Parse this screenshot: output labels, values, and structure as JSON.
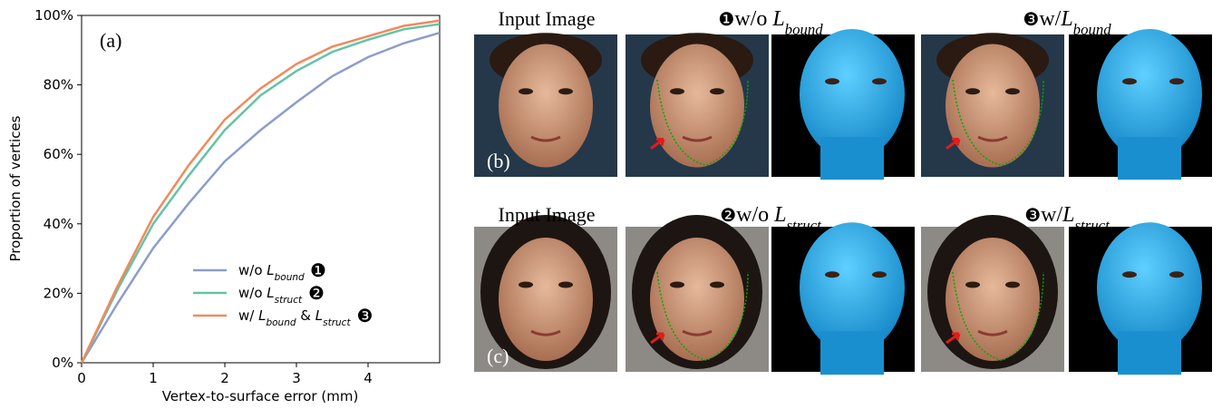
{
  "chart_data": {
    "type": "line",
    "annotation": "(a)",
    "x_label": "Vertex-to-surface error (mm)",
    "y_label": "Proportion of vertices",
    "x": [
      0,
      0.5,
      1,
      1.5,
      2,
      2.5,
      3,
      3.5,
      4,
      4.5,
      5
    ],
    "xlim": [
      0,
      5
    ],
    "xticks": [
      0,
      1,
      2,
      3,
      4
    ],
    "ylim": [
      0,
      100
    ],
    "yticks": [
      {
        "value": 0,
        "label": "0%"
      },
      {
        "value": 20,
        "label": "20%"
      },
      {
        "value": 40,
        "label": "40%"
      },
      {
        "value": 60,
        "label": "60%"
      },
      {
        "value": 80,
        "label": "80%"
      },
      {
        "value": 100,
        "label": "100%"
      }
    ],
    "legend": "lower right",
    "series": [
      {
        "name": [
          "w/o ",
          "L",
          "bound"
        ],
        "marker": "❶",
        "color": "#8c9dcb",
        "values": [
          0,
          17,
          33,
          46,
          58,
          67,
          75,
          82.5,
          88,
          92,
          95
        ]
      },
      {
        "name": [
          "w/o ",
          "L",
          "struct"
        ],
        "marker": "❷",
        "color": "#66c2a5",
        "values": [
          0,
          21,
          40,
          54,
          67,
          77,
          84,
          89.5,
          93,
          96,
          97.5
        ]
      },
      {
        "name": [
          "w/ ",
          "L",
          "bound",
          " & ",
          "L",
          "struct"
        ],
        "marker": "❸",
        "color": "#f08a5d",
        "values": [
          0,
          22,
          42,
          57,
          70,
          79,
          86,
          91,
          94,
          97,
          98.5
        ]
      }
    ]
  },
  "figure": {
    "rows": [
      {
        "label": "(b)",
        "input_title": "Input Image",
        "headers": [
          {
            "marker": "❶",
            "text": [
              "w/o ",
              "L",
              "bound"
            ]
          },
          {
            "marker": "❸",
            "text": [
              "w/",
              "L",
              "bound"
            ]
          }
        ]
      },
      {
        "label": "(c)",
        "input_title": "Input Image",
        "headers": [
          {
            "marker": "❷",
            "text": [
              "w/o ",
              "L",
              "struct"
            ]
          },
          {
            "marker": "❸",
            "text": [
              "w/",
              "L",
              "struct"
            ]
          }
        ]
      }
    ]
  }
}
